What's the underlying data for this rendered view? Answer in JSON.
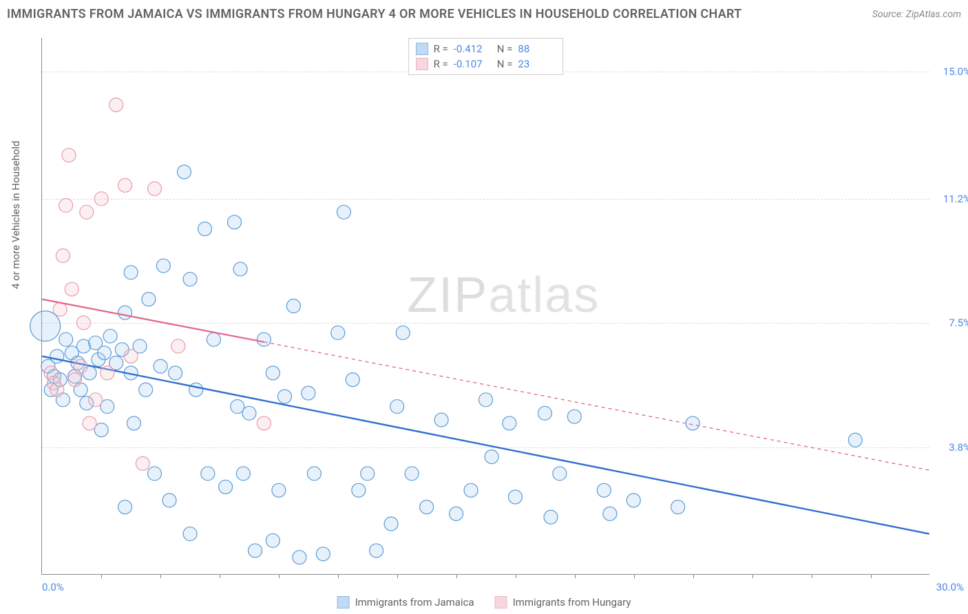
{
  "title": "IMMIGRANTS FROM JAMAICA VS IMMIGRANTS FROM HUNGARY 4 OR MORE VEHICLES IN HOUSEHOLD CORRELATION CHART",
  "source_label": "Source: ZipAtlas.com",
  "y_axis_label": "4 or more Vehicles in Household",
  "watermark_a": "ZIP",
  "watermark_b": "atlas",
  "chart": {
    "type": "scatter",
    "xlim": [
      0.0,
      30.0
    ],
    "ylim": [
      0.0,
      16.0
    ],
    "x_tick_left": "0.0%",
    "x_tick_right": "30.0%",
    "y_ticks": [
      {
        "v": 3.8,
        "label": "3.8%"
      },
      {
        "v": 7.5,
        "label": "7.5%"
      },
      {
        "v": 11.2,
        "label": "11.2%"
      },
      {
        "v": 15.0,
        "label": "15.0%"
      }
    ],
    "x_tick_marks": [
      2,
      4,
      6,
      8,
      10,
      12,
      14,
      16,
      18,
      20,
      22,
      24,
      26,
      28
    ],
    "grid_color": "#dddddd",
    "axis_color": "#888888",
    "background_color": "#ffffff",
    "tick_label_color": "#4a86e8",
    "point_radius": 10,
    "point_stroke_width": 1.2,
    "point_fill_opacity": 0.28,
    "series": [
      {
        "id": "jamaica",
        "name": "Immigrants from Jamaica",
        "stroke": "#5b9bd5",
        "fill": "#a8cbef",
        "line_color": "#2f6fd0",
        "line_width": 2.4,
        "stats": {
          "R": "-0.412",
          "N": "88"
        },
        "regression": {
          "x1": 0.0,
          "y1": 6.5,
          "x2": 30.0,
          "y2": 1.2,
          "solid": true,
          "solid_until_x": 30.0
        },
        "points": [
          [
            0.1,
            7.4,
            22
          ],
          [
            0.2,
            6.2,
            10
          ],
          [
            0.3,
            5.5,
            10
          ],
          [
            0.4,
            5.9,
            10
          ],
          [
            0.5,
            6.5,
            10
          ],
          [
            0.6,
            5.8,
            10
          ],
          [
            0.7,
            5.2,
            10
          ],
          [
            0.8,
            7.0,
            10
          ],
          [
            1.0,
            6.6,
            10
          ],
          [
            1.1,
            5.9,
            10
          ],
          [
            1.2,
            6.3,
            10
          ],
          [
            1.3,
            5.5,
            10
          ],
          [
            1.4,
            6.8,
            10
          ],
          [
            1.5,
            5.1,
            10
          ],
          [
            1.6,
            6.0,
            10
          ],
          [
            1.8,
            6.9,
            10
          ],
          [
            1.9,
            6.4,
            10
          ],
          [
            2.0,
            4.3,
            10
          ],
          [
            2.1,
            6.6,
            10
          ],
          [
            2.2,
            5.0,
            10
          ],
          [
            2.3,
            7.1,
            10
          ],
          [
            2.5,
            6.3,
            10
          ],
          [
            2.7,
            6.7,
            10
          ],
          [
            2.8,
            2.0,
            10
          ],
          [
            2.8,
            7.8,
            10
          ],
          [
            3.0,
            6.0,
            10
          ],
          [
            3.0,
            9.0,
            10
          ],
          [
            3.1,
            4.5,
            10
          ],
          [
            3.3,
            6.8,
            10
          ],
          [
            3.5,
            5.5,
            10
          ],
          [
            3.6,
            8.2,
            10
          ],
          [
            3.8,
            3.0,
            10
          ],
          [
            4.0,
            6.2,
            10
          ],
          [
            4.1,
            9.2,
            10
          ],
          [
            4.3,
            2.2,
            10
          ],
          [
            4.5,
            6.0,
            10
          ],
          [
            4.8,
            12.0,
            10
          ],
          [
            5.0,
            8.8,
            10
          ],
          [
            5.0,
            1.2,
            10
          ],
          [
            5.2,
            5.5,
            10
          ],
          [
            5.5,
            10.3,
            10
          ],
          [
            5.6,
            3.0,
            10
          ],
          [
            5.8,
            7.0,
            10
          ],
          [
            6.2,
            2.6,
            10
          ],
          [
            6.5,
            10.5,
            10
          ],
          [
            6.6,
            5.0,
            10
          ],
          [
            6.7,
            9.1,
            10
          ],
          [
            6.8,
            3.0,
            10
          ],
          [
            7.0,
            4.8,
            10
          ],
          [
            7.2,
            0.7,
            10
          ],
          [
            7.5,
            7.0,
            10
          ],
          [
            7.8,
            1.0,
            10
          ],
          [
            7.8,
            6.0,
            10
          ],
          [
            8.0,
            2.5,
            10
          ],
          [
            8.2,
            5.3,
            10
          ],
          [
            8.5,
            8.0,
            10
          ],
          [
            8.7,
            0.5,
            10
          ],
          [
            9.0,
            5.4,
            10
          ],
          [
            9.2,
            3.0,
            10
          ],
          [
            9.5,
            0.6,
            10
          ],
          [
            10.0,
            7.2,
            10
          ],
          [
            10.2,
            10.8,
            10
          ],
          [
            10.5,
            5.8,
            10
          ],
          [
            10.7,
            2.5,
            10
          ],
          [
            11.0,
            3.0,
            10
          ],
          [
            11.3,
            0.7,
            10
          ],
          [
            11.8,
            1.5,
            10
          ],
          [
            12.0,
            5.0,
            10
          ],
          [
            12.2,
            7.2,
            10
          ],
          [
            12.5,
            3.0,
            10
          ],
          [
            13.0,
            2.0,
            10
          ],
          [
            13.5,
            4.6,
            10
          ],
          [
            14.0,
            1.8,
            10
          ],
          [
            14.5,
            2.5,
            10
          ],
          [
            15.0,
            5.2,
            10
          ],
          [
            15.2,
            3.5,
            10
          ],
          [
            15.8,
            4.5,
            10
          ],
          [
            16.0,
            2.3,
            10
          ],
          [
            17.0,
            4.8,
            10
          ],
          [
            17.2,
            1.7,
            10
          ],
          [
            17.5,
            3.0,
            10
          ],
          [
            18.0,
            4.7,
            10
          ],
          [
            19.0,
            2.5,
            10
          ],
          [
            19.2,
            1.8,
            10
          ],
          [
            20.0,
            2.2,
            10
          ],
          [
            21.5,
            2.0,
            10
          ],
          [
            22.0,
            4.5,
            10
          ],
          [
            27.5,
            4.0,
            10
          ]
        ]
      },
      {
        "id": "hungary",
        "name": "Immigrants from Hungary",
        "stroke": "#e89aaa",
        "fill": "#f4c5cf",
        "line_color": "#e06685",
        "line_width": 2.2,
        "stats": {
          "R": "-0.107",
          "N": "23"
        },
        "regression": {
          "x1": 0.0,
          "y1": 8.2,
          "x2": 30.0,
          "y2": 3.1,
          "solid": true,
          "solid_until_x": 7.5
        },
        "points": [
          [
            0.3,
            6.0,
            10
          ],
          [
            0.4,
            5.7,
            10
          ],
          [
            0.5,
            5.5,
            10
          ],
          [
            0.6,
            7.9,
            10
          ],
          [
            0.7,
            9.5,
            10
          ],
          [
            0.8,
            11.0,
            10
          ],
          [
            0.9,
            12.5,
            10
          ],
          [
            1.0,
            8.5,
            10
          ],
          [
            1.1,
            5.8,
            10
          ],
          [
            1.3,
            6.2,
            10
          ],
          [
            1.4,
            7.5,
            10
          ],
          [
            1.5,
            10.8,
            10
          ],
          [
            1.6,
            4.5,
            10
          ],
          [
            1.8,
            5.2,
            10
          ],
          [
            2.0,
            11.2,
            10
          ],
          [
            2.2,
            6.0,
            10
          ],
          [
            2.5,
            14.0,
            10
          ],
          [
            2.8,
            11.6,
            10
          ],
          [
            3.0,
            6.5,
            10
          ],
          [
            3.4,
            3.3,
            10
          ],
          [
            3.8,
            11.5,
            10
          ],
          [
            4.6,
            6.8,
            10
          ],
          [
            7.5,
            4.5,
            10
          ]
        ]
      }
    ]
  },
  "legend_bottom": [
    {
      "series": "jamaica"
    },
    {
      "series": "hungary"
    }
  ]
}
